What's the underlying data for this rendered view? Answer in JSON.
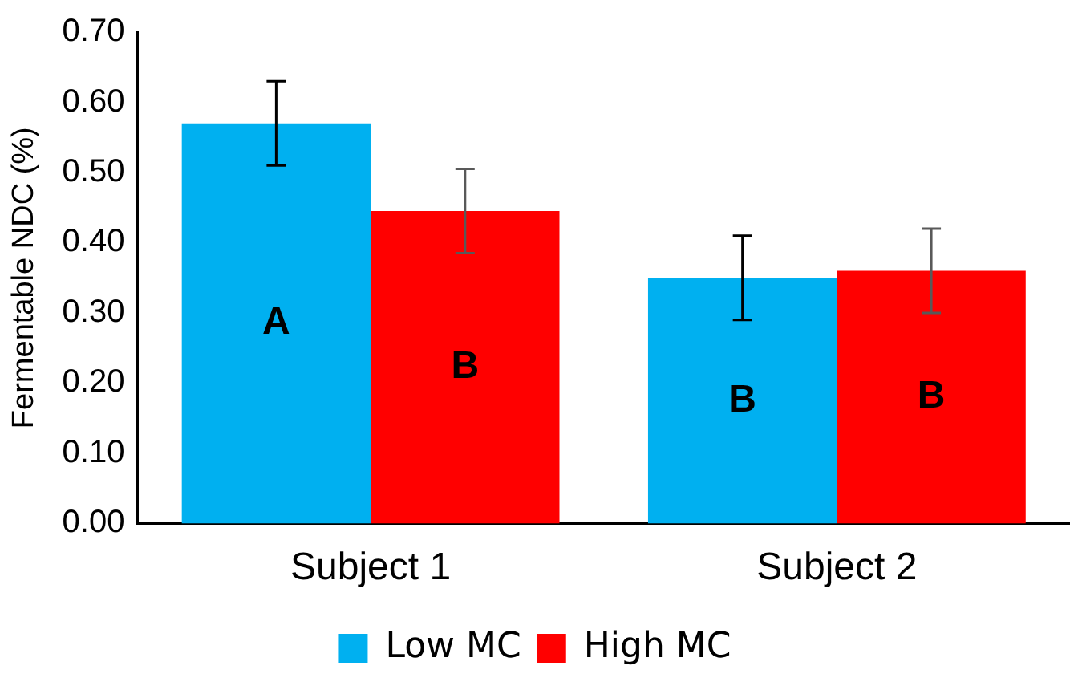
{
  "chart_data": {
    "type": "bar",
    "ylabel": "Fermentable NDC (%)",
    "categories": [
      "Subject 1",
      "Subject 2"
    ],
    "series": [
      {
        "name": "Low MC",
        "color": "#00b0f0",
        "values": [
          0.57,
          0.35
        ],
        "errors": [
          0.06,
          0.06
        ],
        "value_labels": [
          "A",
          "B"
        ]
      },
      {
        "name": "High MC",
        "color": "#ff0000",
        "values": [
          0.445,
          0.36
        ],
        "errors": [
          0.06,
          0.06
        ],
        "value_labels": [
          "B",
          "B"
        ]
      }
    ],
    "ylim": [
      0,
      0.7
    ],
    "yticks": [
      {
        "value": 0,
        "label": "0.00"
      },
      {
        "value": 0.1,
        "label": "0.10"
      },
      {
        "value": 0.2,
        "label": "0.20"
      },
      {
        "value": 0.3,
        "label": "0.30"
      },
      {
        "value": 0.4,
        "label": "0.40"
      },
      {
        "value": 0.5,
        "label": "0.50"
      },
      {
        "value": 0.6,
        "label": "0.60"
      },
      {
        "value": 0.7,
        "label": "0.70"
      }
    ],
    "grid": false,
    "legend": "bottom"
  }
}
